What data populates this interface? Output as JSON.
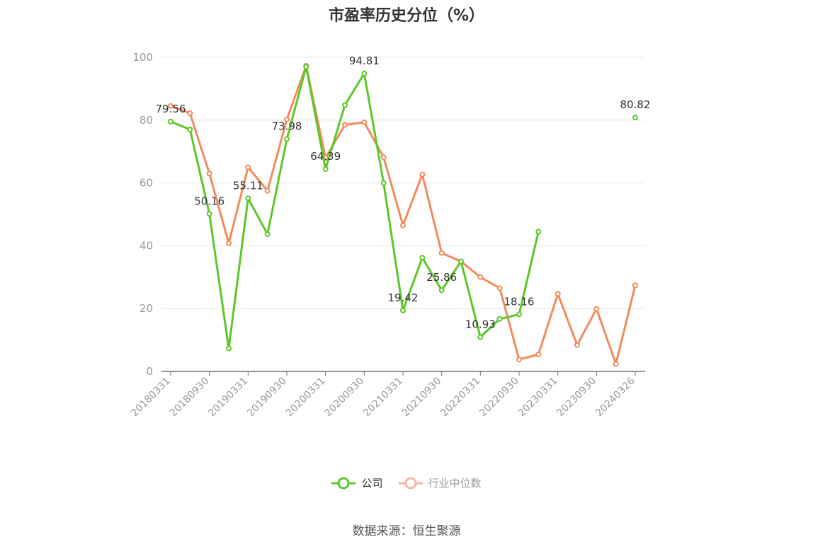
{
  "title": "市盈率历史分位（%）",
  "source_text": "数据来源：恒生聚源",
  "colors": {
    "company": "#5cc827",
    "industry": "#f28b5a",
    "industry_legend": "#f5b7a0",
    "grid": "#e6e6e6",
    "axis": "#6e7079",
    "text": "#999999"
  },
  "chart_data": {
    "type": "line",
    "title": "市盈率历史分位（%）",
    "xlabel": "",
    "ylabel": "",
    "ylim": [
      0,
      100
    ],
    "yticks": [
      0,
      20,
      40,
      60,
      80,
      100
    ],
    "grid": true,
    "legend_position": "bottom",
    "x": [
      "20180331",
      "20180630",
      "20180930",
      "20181231",
      "20190331",
      "20190630",
      "20190930",
      "20191231",
      "20200331",
      "20200630",
      "20200930",
      "20201231",
      "20210331",
      "20210630",
      "20210930",
      "20211231",
      "20220331",
      "20220630",
      "20220930",
      "20221231",
      "20230331",
      "20230630",
      "20230930",
      "20231231",
      "20240326"
    ],
    "xtick_labels": [
      "20180331",
      "20180930",
      "20190331",
      "20190930",
      "20200331",
      "20200930",
      "20210331",
      "20210930",
      "20220331",
      "20220930",
      "20230331",
      "20230930",
      "20240326"
    ],
    "series": [
      {
        "name": "公司",
        "values": [
          79.56,
          77.0,
          50.16,
          7.3,
          55.11,
          43.7,
          73.98,
          97.0,
          64.39,
          84.8,
          94.81,
          60.0,
          19.42,
          36.2,
          25.86,
          35.0,
          10.93,
          16.7,
          18.16,
          44.5,
          null,
          null,
          null,
          null,
          80.82
        ],
        "labels": {
          "0": "79.56",
          "2": "50.16",
          "4": "55.11",
          "6": "73.98",
          "8": "64.39",
          "10": "94.81",
          "12": "19.42",
          "14": "25.86",
          "16": "10.93",
          "18": "18.16",
          "24": "80.82"
        }
      },
      {
        "name": "行业中位数",
        "values": [
          84.5,
          82.2,
          63.0,
          40.8,
          65.0,
          57.5,
          80.2,
          97.3,
          68.0,
          78.5,
          79.3,
          68.2,
          46.5,
          62.7,
          37.7,
          35.0,
          30.0,
          26.5,
          3.8,
          5.4,
          24.7,
          8.4,
          19.9,
          2.4,
          27.4
        ]
      }
    ]
  }
}
